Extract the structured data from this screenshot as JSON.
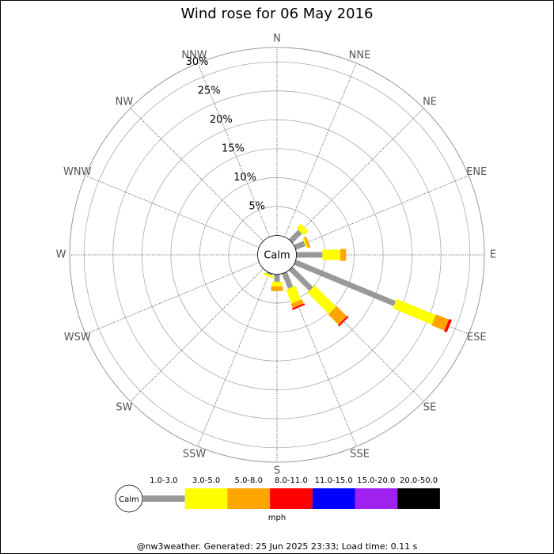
{
  "chart_data": {
    "type": "windrose",
    "title": "Wind rose for 06 May 2016",
    "categories": [
      "N",
      "NNE",
      "NE",
      "ENE",
      "E",
      "ESE",
      "SE",
      "SSE",
      "S",
      "SSW",
      "SW",
      "WSW",
      "W",
      "WNW",
      "NW",
      "NNW"
    ],
    "calm_label": "Calm",
    "units_label": "mph",
    "footer": "@nw3weather. Generated: 25 Jun 2025 23:33; Load time: 0.11 s",
    "rlim": [
      0,
      32.5
    ],
    "rticks": [
      {
        "value": 5,
        "label": "5%"
      },
      {
        "value": 10,
        "label": "10%"
      },
      {
        "value": 15,
        "label": "15%"
      },
      {
        "value": 20,
        "label": "20%"
      },
      {
        "value": 25,
        "label": "25%"
      },
      {
        "value": 30,
        "label": "30%"
      }
    ],
    "series": [
      {
        "name": "1.0-3.0",
        "color": "#999999",
        "values": [
          0,
          0,
          2.3,
          1.8,
          4.5,
          18.7,
          5,
          2.8,
          1.3,
          0.3,
          0,
          0,
          0,
          0,
          0,
          0
        ]
      },
      {
        "name": "3.0-5.0",
        "color": "#ffff00",
        "values": [
          0,
          0,
          1.1,
          0.3,
          3.1,
          7.3,
          5.2,
          2.6,
          0.8,
          0.4,
          0,
          0,
          0,
          0,
          0,
          0
        ]
      },
      {
        "name": "5.0-8.0",
        "color": "#ffa500",
        "values": [
          0,
          0,
          0,
          0.4,
          1.0,
          2.4,
          2.5,
          0.8,
          0.8,
          0,
          0,
          0,
          0,
          0,
          0,
          0
        ]
      },
      {
        "name": "8.0-11.0",
        "color": "#ff0000",
        "values": [
          0,
          0,
          0,
          0,
          0,
          0.5,
          0.3,
          0.3,
          0,
          0,
          0,
          0,
          0,
          0,
          0,
          0
        ]
      },
      {
        "name": "11.0-15.0",
        "color": "#0000ff",
        "values": [
          0,
          0,
          0,
          0,
          0,
          0,
          0,
          0,
          0,
          0,
          0,
          0,
          0,
          0,
          0,
          0
        ]
      },
      {
        "name": "15.0-20.0",
        "color": "#a020f0",
        "values": [
          0,
          0,
          0,
          0,
          0,
          0,
          0,
          0,
          0,
          0,
          0,
          0,
          0,
          0,
          0,
          0
        ]
      },
      {
        "name": "20.0-50.0",
        "color": "#000000",
        "values": [
          0,
          0,
          0,
          0,
          0,
          0,
          0,
          0,
          0,
          0,
          0,
          0,
          0,
          0,
          0,
          0
        ]
      }
    ]
  }
}
